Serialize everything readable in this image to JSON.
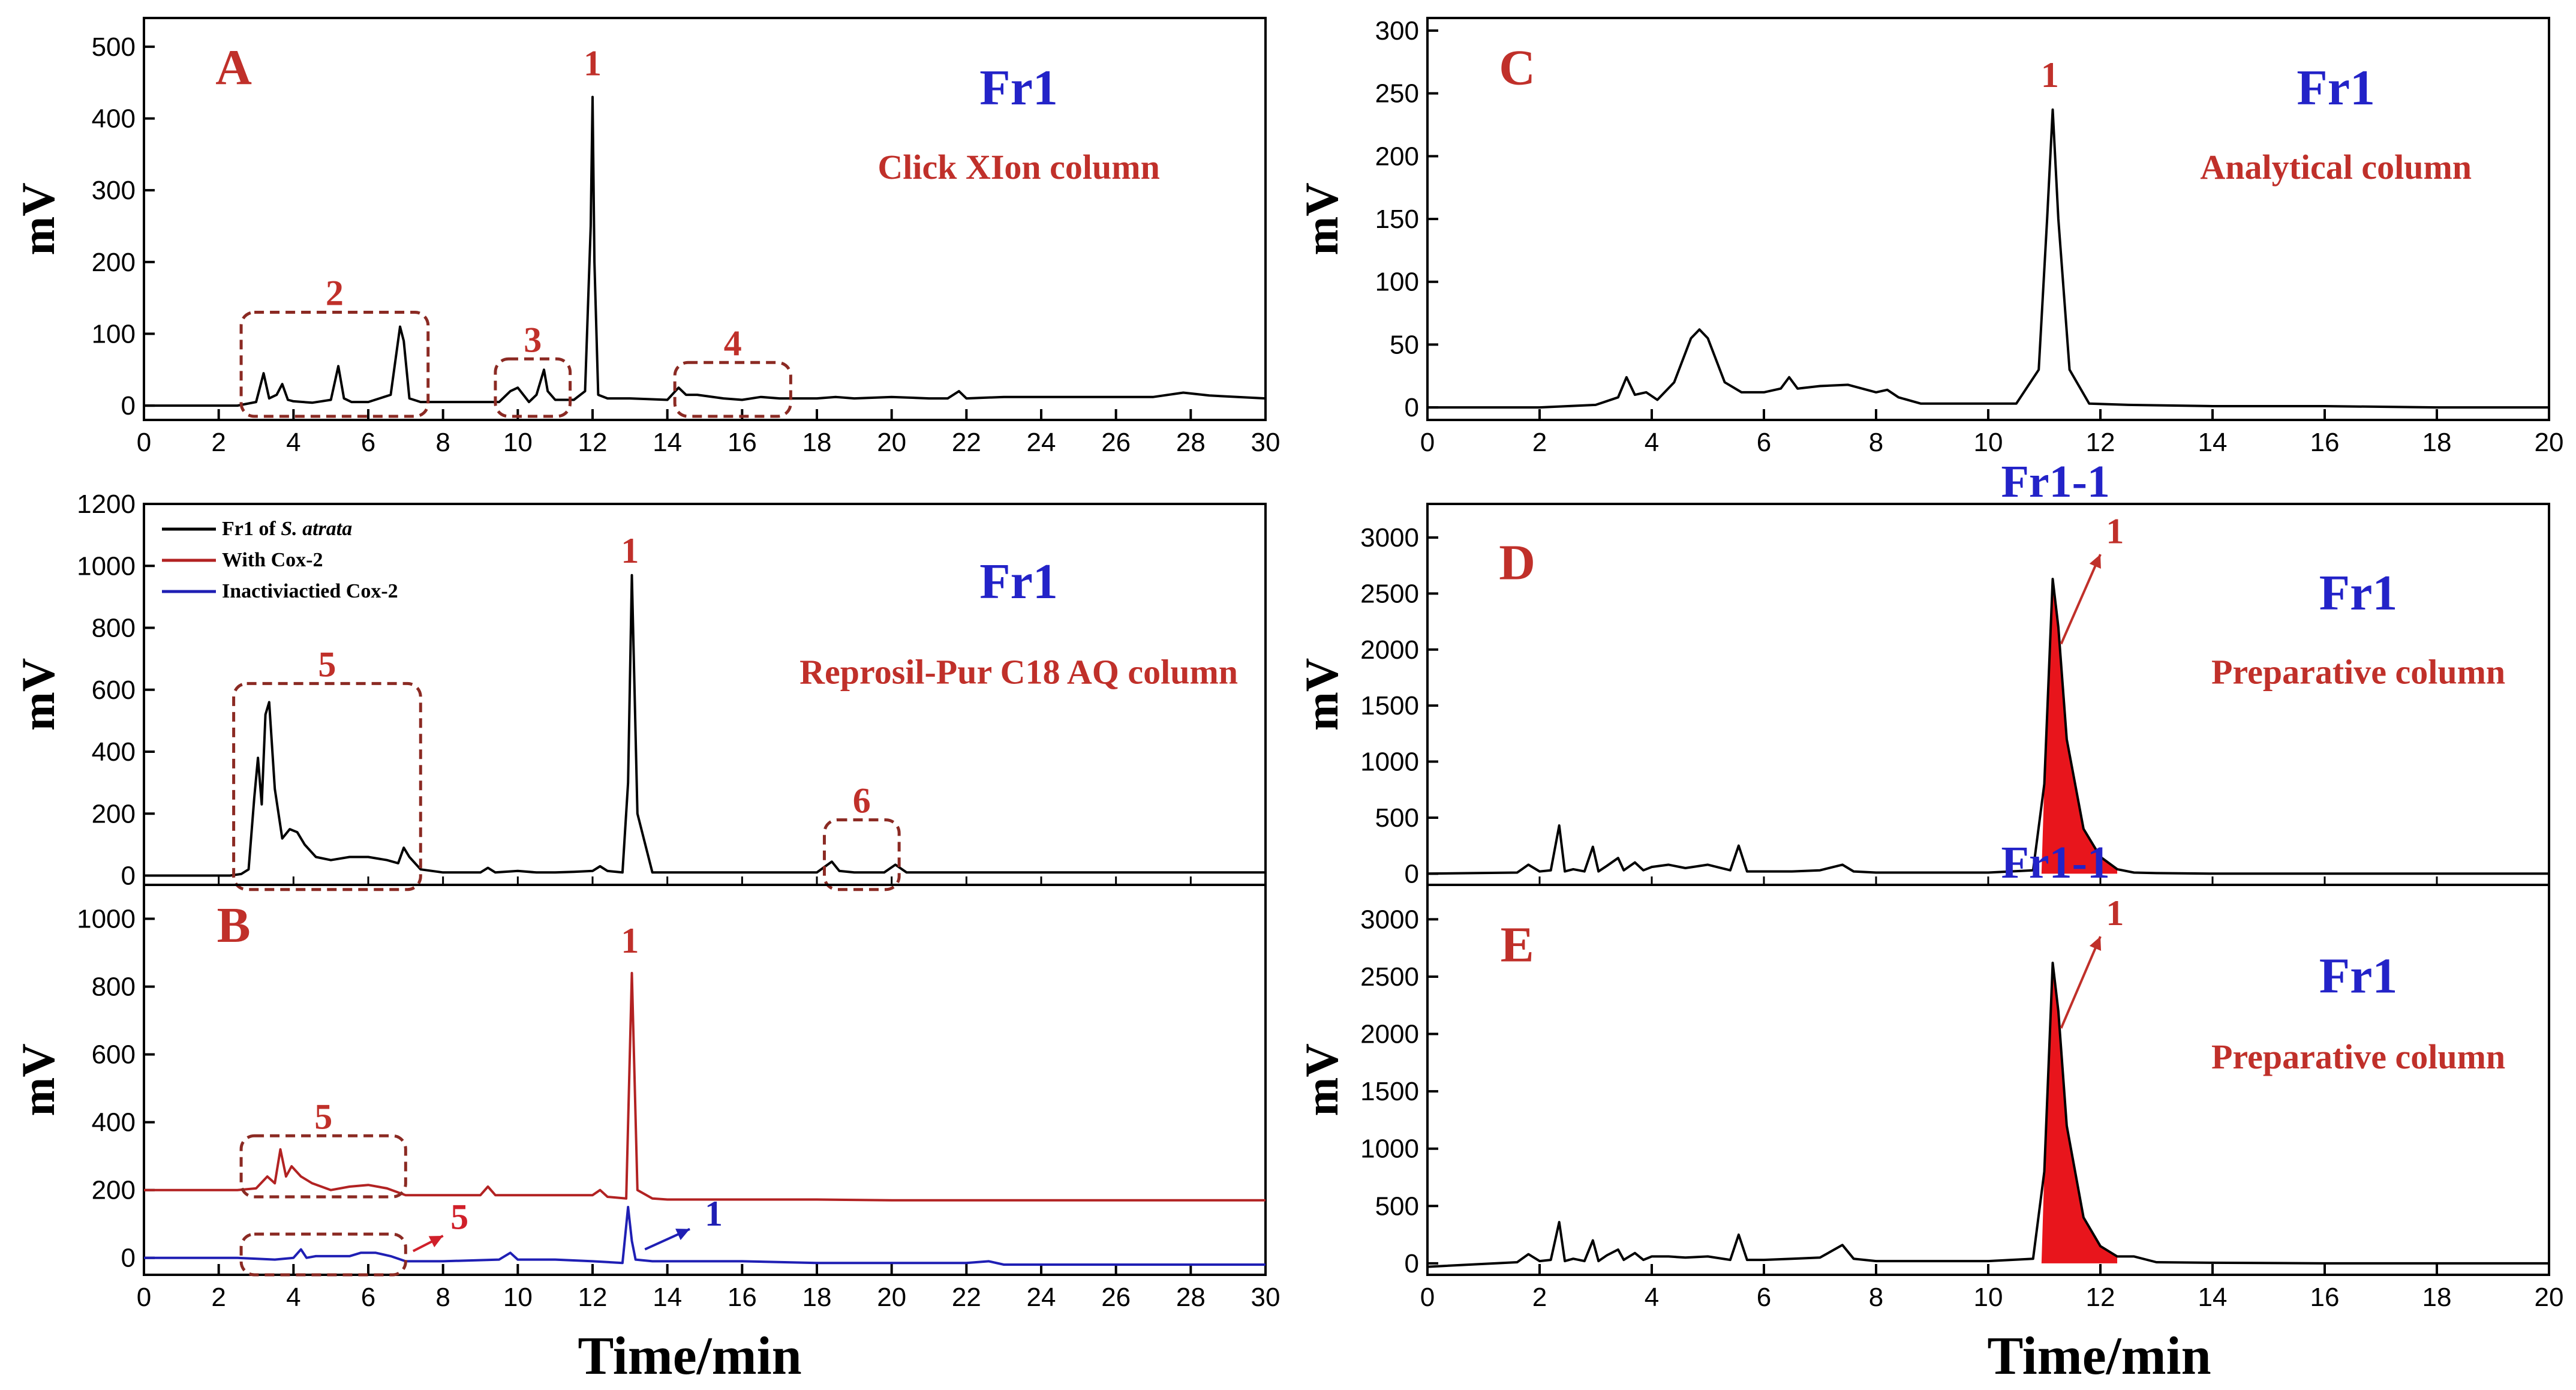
{
  "figure_xlabel": "Time/min",
  "chart_data": [
    {
      "id": "A",
      "type": "line",
      "panel_label": "A",
      "ylabel": "mV",
      "xlim": [
        0,
        30
      ],
      "xticks": [
        0,
        2,
        4,
        6,
        8,
        10,
        12,
        14,
        16,
        18,
        20,
        22,
        24,
        26,
        28,
        30
      ],
      "ylim": [
        -20,
        540
      ],
      "yticks": [
        0,
        100,
        200,
        300,
        400,
        500
      ],
      "title_labels": [
        "Fr1",
        "Click XIon column"
      ],
      "series": [
        {
          "color": "#000000",
          "baseline": 0,
          "x": [
            0,
            2.5,
            3.0,
            3.2,
            3.35,
            3.55,
            3.7,
            3.85,
            4.0,
            4.5,
            5.0,
            5.2,
            5.35,
            5.55,
            6.0,
            6.6,
            6.85,
            6.95,
            7.1,
            7.4,
            8,
            9.5,
            9.8,
            10.0,
            10.3,
            10.5,
            10.7,
            10.8,
            11.0,
            11.5,
            11.8,
            11.95,
            12.0,
            12.05,
            12.15,
            12.4,
            13,
            14,
            14.3,
            14.5,
            14.8,
            15.5,
            16,
            16.5,
            17,
            18,
            18.5,
            19,
            20,
            21,
            21.5,
            21.8,
            22.0,
            23,
            24,
            25,
            26,
            27,
            27.8,
            28.5,
            30
          ],
          "y": [
            0,
            0,
            5,
            45,
            10,
            15,
            30,
            8,
            6,
            4,
            8,
            55,
            10,
            5,
            5,
            15,
            110,
            90,
            10,
            5,
            5,
            5,
            20,
            25,
            5,
            15,
            50,
            20,
            8,
            8,
            20,
            250,
            430,
            200,
            15,
            10,
            10,
            8,
            25,
            15,
            15,
            10,
            8,
            12,
            10,
            10,
            12,
            10,
            12,
            10,
            10,
            20,
            10,
            12,
            12,
            12,
            12,
            12,
            18,
            14,
            10
          ]
        }
      ],
      "peak_labels": [
        {
          "text": "1",
          "x": 12.0,
          "y": 460
        }
      ],
      "regions": [
        {
          "label": "2",
          "x": [
            2.6,
            7.6
          ],
          "y": [
            -15,
            130
          ]
        },
        {
          "label": "3",
          "x": [
            9.4,
            11.4
          ],
          "y": [
            -15,
            65
          ]
        },
        {
          "label": "4",
          "x": [
            14.2,
            17.3
          ],
          "y": [
            -15,
            60
          ]
        }
      ]
    },
    {
      "id": "B-top",
      "type": "line",
      "panel_label": "",
      "ylabel": "mV",
      "xlim": [
        0,
        30
      ],
      "xticks": [],
      "ylim": [
        -30,
        1200
      ],
      "yticks": [
        0,
        200,
        400,
        600,
        800,
        1000,
        1200
      ],
      "title_labels": [
        "Fr1",
        "Reprosil-Pur C18 AQ column"
      ],
      "legend": [
        {
          "text": "Fr1 of ",
          "italic": "S. atrata",
          "color": "#000000"
        },
        {
          "text": "With Cox-2",
          "italic": "",
          "color": "#b22222"
        },
        {
          "text": "Inactiviactied Cox-2",
          "italic": "",
          "color": "#1f1fb4"
        }
      ],
      "series": [
        {
          "color": "#000000",
          "baseline": 0,
          "x": [
            0,
            2.3,
            2.6,
            2.8,
            2.95,
            3.05,
            3.15,
            3.25,
            3.35,
            3.5,
            3.7,
            3.9,
            4.1,
            4.3,
            4.6,
            5,
            5.5,
            6,
            6.5,
            6.8,
            6.95,
            7.1,
            7.4,
            8,
            9,
            9.2,
            9.4,
            10,
            10.5,
            11,
            11.5,
            12,
            12.2,
            12.4,
            12.8,
            12.95,
            13.05,
            13.2,
            13.6,
            14,
            15,
            16,
            17,
            18,
            18.4,
            18.6,
            19,
            19.8,
            20.1,
            20.4,
            21,
            22,
            23,
            24,
            25,
            26,
            27,
            28,
            29,
            30
          ],
          "y": [
            0,
            0,
            5,
            20,
            250,
            380,
            230,
            520,
            560,
            280,
            120,
            150,
            140,
            100,
            60,
            50,
            60,
            60,
            50,
            40,
            90,
            60,
            20,
            10,
            10,
            25,
            10,
            15,
            10,
            10,
            12,
            15,
            30,
            15,
            10,
            300,
            970,
            200,
            10,
            10,
            10,
            10,
            10,
            10,
            45,
            15,
            10,
            10,
            35,
            10,
            10,
            10,
            10,
            10,
            10,
            10,
            10,
            10,
            10,
            10
          ]
        }
      ],
      "peak_labels": [
        {
          "text": "1",
          "x": 13.0,
          "y": 1010
        }
      ],
      "regions": [
        {
          "label": "5",
          "x": [
            2.4,
            7.4
          ],
          "y": [
            -45,
            620
          ]
        },
        {
          "label": "6",
          "x": [
            18.2,
            20.2
          ],
          "y": [
            -45,
            180
          ]
        }
      ]
    },
    {
      "id": "B",
      "type": "line",
      "panel_label": "B",
      "ylabel": "mV",
      "xlim": [
        0,
        30
      ],
      "xticks": [
        0,
        2,
        4,
        6,
        8,
        10,
        12,
        14,
        16,
        18,
        20,
        22,
        24,
        26,
        28,
        30
      ],
      "ylim": [
        -50,
        1100
      ],
      "yticks": [
        0,
        200,
        400,
        600,
        800,
        1000
      ],
      "title_labels": [],
      "series": [
        {
          "color": "#b22222",
          "baseline": 175,
          "x": [
            0,
            2.5,
            3.0,
            3.3,
            3.5,
            3.65,
            3.8,
            3.95,
            4.2,
            4.5,
            5,
            5.5,
            6,
            6.5,
            7,
            8,
            9,
            9.2,
            9.4,
            10,
            10.5,
            11,
            12,
            12.2,
            12.4,
            12.9,
            13.05,
            13.2,
            13.6,
            14,
            16,
            18,
            20,
            22,
            24,
            26,
            28,
            30
          ],
          "y": [
            200,
            200,
            205,
            240,
            220,
            320,
            240,
            270,
            240,
            220,
            200,
            210,
            215,
            205,
            185,
            185,
            185,
            210,
            185,
            185,
            185,
            185,
            185,
            200,
            180,
            175,
            840,
            200,
            175,
            172,
            172,
            172,
            170,
            170,
            170,
            170,
            170,
            170
          ]
        },
        {
          "color": "#1f1fb4",
          "baseline": -20,
          "x": [
            0,
            2.5,
            3.5,
            4.0,
            4.2,
            4.35,
            4.6,
            5,
            5.5,
            5.8,
            6.2,
            6.6,
            7,
            8,
            9.5,
            9.8,
            10.0,
            11,
            12,
            12.8,
            12.95,
            13.05,
            13.15,
            13.6,
            14,
            16,
            18,
            20,
            22,
            22.6,
            23,
            24,
            26,
            28,
            30
          ],
          "y": [
            0,
            0,
            -5,
            0,
            25,
            0,
            5,
            5,
            5,
            15,
            15,
            5,
            -10,
            -10,
            -5,
            15,
            -5,
            -5,
            -10,
            -15,
            150,
            50,
            -5,
            -10,
            -10,
            -10,
            -15,
            -15,
            -15,
            -10,
            -20,
            -20,
            -20,
            -20,
            -20
          ]
        }
      ],
      "peak_labels": [
        {
          "text": "1",
          "x": 13.0,
          "y": 900,
          "color": "#c0302a"
        }
      ],
      "regions": [
        {
          "label": "5",
          "x": [
            2.6,
            7.0
          ],
          "y": [
            180,
            360
          ]
        },
        {
          "label": "",
          "x": [
            2.6,
            7.0
          ],
          "y": [
            -50,
            70
          ]
        }
      ],
      "arrows": [
        {
          "label": "5",
          "color": "#d0202a",
          "from": [
            7.2,
            20
          ],
          "to": [
            8.0,
            65
          ],
          "label_at": [
            8.2,
            85
          ]
        },
        {
          "label": "1",
          "color": "#1f1fb4",
          "from": [
            13.4,
            25
          ],
          "to": [
            14.6,
            85
          ],
          "label_at": [
            15.0,
            95
          ]
        }
      ]
    },
    {
      "id": "C",
      "type": "line",
      "panel_label": "C",
      "ylabel": "mV",
      "xlim": [
        0,
        20
      ],
      "xticks": [
        0,
        2,
        4,
        6,
        8,
        10,
        12,
        14,
        16,
        18,
        20
      ],
      "ylim": [
        -10,
        310
      ],
      "yticks": [
        0,
        50,
        100,
        150,
        200,
        250,
        300
      ],
      "title_labels": [
        "Fr1",
        "Analytical column"
      ],
      "series": [
        {
          "color": "#000000",
          "baseline": 0,
          "x": [
            0,
            2,
            3.0,
            3.4,
            3.55,
            3.7,
            3.9,
            4.1,
            4.4,
            4.7,
            4.85,
            5.0,
            5.3,
            5.6,
            6.0,
            6.3,
            6.45,
            6.6,
            7.0,
            7.5,
            8.0,
            8.2,
            8.4,
            8.8,
            9.5,
            10.5,
            10.9,
            11.05,
            11.15,
            11.25,
            11.45,
            11.8,
            12.5,
            14,
            16,
            18,
            20
          ],
          "y": [
            0,
            0,
            2,
            8,
            24,
            10,
            12,
            6,
            20,
            55,
            62,
            55,
            20,
            12,
            12,
            15,
            24,
            15,
            17,
            18,
            12,
            14,
            8,
            3,
            3,
            3,
            30,
            150,
            237,
            150,
            30,
            3,
            2,
            1,
            1,
            0,
            0
          ]
        }
      ],
      "peak_labels": [
        {
          "text": "1",
          "x": 11.1,
          "y": 255
        }
      ],
      "regions": []
    },
    {
      "id": "D",
      "type": "area",
      "panel_label": "D",
      "ylabel": "mV",
      "xlim": [
        0,
        20
      ],
      "xticks": [],
      "ylim": [
        -100,
        3300
      ],
      "yticks": [
        0,
        500,
        1000,
        1500,
        2000,
        2500,
        3000
      ],
      "title_labels": [
        "Fr1",
        "Preparative column"
      ],
      "peak_name": "Fr1-1",
      "series": [
        {
          "color": "#000000",
          "baseline": 0,
          "x": [
            0,
            1.6,
            1.8,
            2.0,
            2.2,
            2.35,
            2.45,
            2.6,
            2.8,
            2.95,
            3.05,
            3.2,
            3.4,
            3.5,
            3.7,
            3.85,
            4.0,
            4.3,
            4.6,
            5.0,
            5.4,
            5.55,
            5.7,
            6.0,
            6.5,
            7.0,
            7.4,
            7.6,
            8.0,
            9,
            10,
            10.8,
            11.0,
            11.15,
            11.25,
            11.4,
            11.7,
            12.0,
            12.3,
            12.6,
            13,
            14,
            16,
            18,
            20
          ],
          "y": [
            0,
            10,
            80,
            20,
            30,
            430,
            20,
            40,
            20,
            240,
            20,
            70,
            140,
            30,
            100,
            30,
            60,
            80,
            50,
            80,
            30,
            250,
            20,
            20,
            20,
            30,
            80,
            20,
            10,
            10,
            10,
            30,
            800,
            2630,
            2200,
            1200,
            400,
            150,
            40,
            10,
            5,
            0,
            0,
            0,
            0
          ]
        }
      ],
      "filled_peak": {
        "x": [
          10.95,
          12.3
        ],
        "color": "#e8151c"
      },
      "peak_labels": [],
      "regions": [],
      "arrows": [
        {
          "label": "1",
          "color": "#c0302a",
          "from": [
            11.3,
            2050
          ],
          "to": [
            12.0,
            2850
          ],
          "label_at": [
            12.1,
            2950
          ]
        }
      ]
    },
    {
      "id": "E",
      "type": "area",
      "panel_label": "E",
      "ylabel": "mV",
      "xlim": [
        0,
        20
      ],
      "xticks": [
        0,
        2,
        4,
        6,
        8,
        10,
        12,
        14,
        16,
        18,
        20
      ],
      "ylim": [
        -100,
        3300
      ],
      "yticks": [
        0,
        500,
        1000,
        1500,
        2000,
        2500,
        3000
      ],
      "title_labels": [
        "Fr1",
        "Preparative column"
      ],
      "peak_name": "Fr1-1",
      "series": [
        {
          "color": "#000000",
          "baseline": 0,
          "x": [
            0,
            1.6,
            1.8,
            2.0,
            2.2,
            2.35,
            2.45,
            2.6,
            2.8,
            2.95,
            3.05,
            3.2,
            3.4,
            3.5,
            3.7,
            3.85,
            4.0,
            4.3,
            4.6,
            5.0,
            5.4,
            5.55,
            5.7,
            6.0,
            6.5,
            7.0,
            7.4,
            7.6,
            8.0,
            9,
            10,
            10.8,
            11.0,
            11.15,
            11.25,
            11.4,
            11.7,
            12.0,
            12.3,
            12.6,
            13,
            14,
            16,
            18,
            20
          ],
          "y": [
            -30,
            10,
            80,
            20,
            30,
            360,
            20,
            40,
            20,
            200,
            20,
            70,
            120,
            30,
            90,
            30,
            60,
            60,
            50,
            60,
            30,
            250,
            30,
            30,
            40,
            50,
            160,
            40,
            20,
            20,
            20,
            40,
            800,
            2620,
            2200,
            1200,
            400,
            150,
            60,
            60,
            10,
            5,
            0,
            0,
            0
          ]
        }
      ],
      "filled_peak": {
        "x": [
          10.95,
          12.3
        ],
        "color": "#e8151c"
      },
      "peak_labels": [],
      "regions": [],
      "arrows": [
        {
          "label": "1",
          "color": "#c0302a",
          "from": [
            11.3,
            2050
          ],
          "to": [
            12.0,
            2850
          ],
          "label_at": [
            12.1,
            2950
          ]
        }
      ]
    }
  ]
}
